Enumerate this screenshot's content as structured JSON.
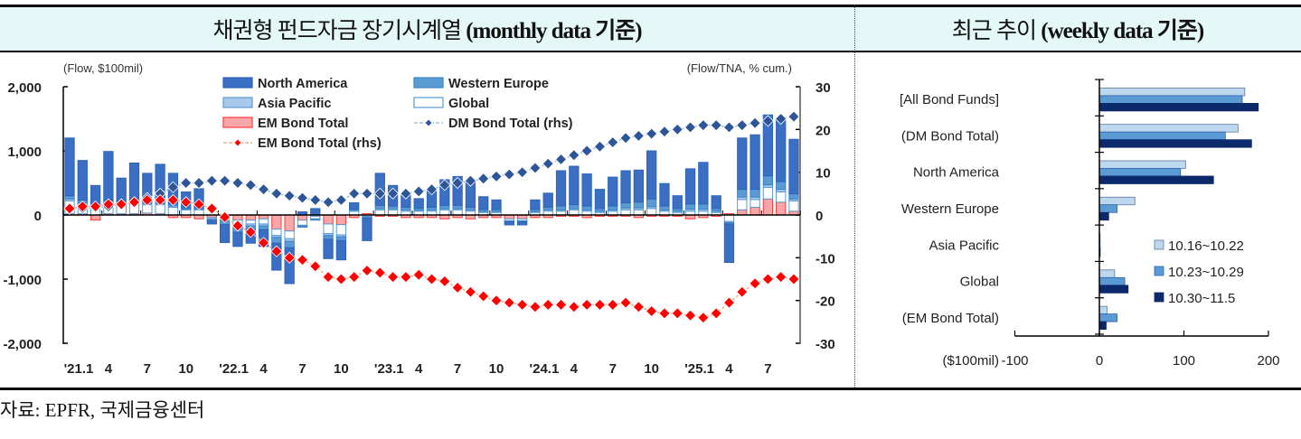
{
  "headers": {
    "left_title_ko": "채권형 펀드자금 장기시계열",
    "left_title_en": "(monthly data 기준)",
    "right_title_ko": "최근 추이",
    "right_title_en": "(weekly data 기준)"
  },
  "source": "자료: EPFR,  국제금융센터",
  "colors": {
    "north_america": "#3a6fc4",
    "western_europe": "#5b9bd5",
    "asia_pacific": "#a9c9ec",
    "global": "#ffffff",
    "em_bond": "#f7a7a7",
    "dm_line": "#2e5597",
    "em_line": "#ff0000",
    "week1": "#bdd7ee",
    "week2": "#5b9bd5",
    "week3": "#0c2a6b"
  },
  "chart_data": [
    {
      "type": "bar",
      "subtype": "stacked bar + line (dual axis)",
      "title": "채권형 펀드자금 장기시계열 (monthly data 기준)",
      "ylabel": "(Flow, $100mil)",
      "y2label": "(Flow/TNA, % cum.)",
      "ylim": [
        -2000,
        2000
      ],
      "y2lim": [
        -30,
        30
      ],
      "yticks": [
        "2,000",
        "1,000",
        "0",
        "-1,000",
        "-2,000"
      ],
      "y2ticks": [
        "30",
        "20",
        "10",
        "0",
        "-10",
        "-20",
        "-30"
      ],
      "xtick_labels": [
        "'21.1",
        "4",
        "7",
        "10",
        "'22.1",
        "4",
        "7",
        "10",
        "'23.1",
        "4",
        "7",
        "10",
        "'24.1",
        "4",
        "7",
        "10",
        "'25.1",
        "4",
        "7"
      ],
      "legend": [
        "North America",
        "Western Europe",
        "Asia Pacific",
        "Global",
        "EM Bond Total",
        "DM Bond Total (rhs)",
        "EM Bond Total (rhs)"
      ],
      "legend_position": "top",
      "months": 57,
      "series": [
        {
          "name": "North America",
          "kind": "bar",
          "values": [
            900,
            620,
            330,
            760,
            390,
            580,
            440,
            580,
            480,
            250,
            300,
            -50,
            -280,
            -220,
            -200,
            -260,
            -420,
            -560,
            50,
            100,
            -300,
            -300,
            100,
            -350,
            500,
            320,
            200,
            150,
            250,
            400,
            450,
            400,
            200,
            150,
            -50,
            -50,
            150,
            220,
            550,
            600,
            500,
            300,
            450,
            500,
            500,
            750,
            350,
            200,
            550,
            650,
            200,
            -600,
            800,
            850,
            950,
            950,
            850
          ]
        },
        {
          "name": "Western Europe",
          "kind": "bar",
          "values": [
            50,
            40,
            20,
            40,
            30,
            40,
            30,
            30,
            30,
            20,
            20,
            -20,
            -60,
            -80,
            -70,
            -60,
            -90,
            -100,
            -20,
            -10,
            -60,
            -60,
            20,
            -20,
            50,
            40,
            40,
            30,
            40,
            50,
            50,
            40,
            30,
            30,
            -10,
            -10,
            30,
            40,
            60,
            60,
            60,
            40,
            60,
            80,
            90,
            120,
            60,
            40,
            80,
            80,
            40,
            -20,
            120,
            120,
            140,
            120,
            80
          ]
        },
        {
          "name": "Asia Pacific",
          "kind": "bar",
          "values": [
            30,
            20,
            10,
            20,
            15,
            20,
            20,
            20,
            20,
            10,
            10,
            -10,
            -20,
            -30,
            -30,
            -30,
            -30,
            -40,
            -10,
            -10,
            -30,
            -30,
            10,
            -10,
            20,
            20,
            20,
            15,
            20,
            20,
            20,
            20,
            15,
            15,
            -5,
            -5,
            15,
            20,
            20,
            20,
            20,
            20,
            20,
            30,
            30,
            30,
            20,
            20,
            30,
            30,
            20,
            -20,
            40,
            40,
            40,
            40,
            30
          ]
        },
        {
          "name": "Global",
          "kind": "bar",
          "values": [
            200,
            150,
            100,
            150,
            120,
            150,
            130,
            140,
            120,
            80,
            80,
            -20,
            -50,
            -80,
            -60,
            -80,
            -100,
            -120,
            -80,
            -40,
            -150,
            -160,
            60,
            -20,
            80,
            80,
            60,
            60,
            60,
            80,
            80,
            60,
            40,
            40,
            -30,
            -30,
            40,
            60,
            60,
            80,
            60,
            40,
            60,
            80,
            80,
            100,
            60,
            40,
            60,
            60,
            40,
            -100,
            160,
            120,
            180,
            160,
            160
          ]
        },
        {
          "name": "EM Bond Total",
          "kind": "bar",
          "values": [
            20,
            20,
            -80,
            20,
            20,
            20,
            30,
            20,
            -40,
            -40,
            -60,
            -40,
            -20,
            -80,
            -80,
            -60,
            -220,
            -250,
            -80,
            -20,
            -140,
            -150,
            -40,
            20,
            -20,
            -20,
            -40,
            -40,
            -40,
            -60,
            -40,
            -60,
            -40,
            -40,
            -60,
            -60,
            -40,
            -40,
            -20,
            -20,
            -40,
            -20,
            -20,
            -20,
            -40,
            -20,
            -20,
            -20,
            -60,
            -40,
            -20,
            20,
            80,
            120,
            250,
            200,
            60
          ]
        },
        {
          "name": "DM Bond Total (rhs)",
          "kind": "line",
          "values": [
            1.5,
            1.6,
            1.7,
            2.0,
            2.5,
            3.0,
            4.0,
            5.0,
            6.5,
            7.5,
            7.5,
            8,
            8,
            7.5,
            7,
            6,
            5,
            4.5,
            4,
            3.5,
            3,
            3.5,
            5,
            5,
            5,
            5,
            5,
            5.5,
            6,
            7,
            7.5,
            8,
            8.5,
            9,
            9.5,
            10,
            11,
            12,
            13,
            14,
            15,
            16,
            17,
            18,
            18.5,
            19,
            19.5,
            20,
            20.5,
            21,
            21,
            20.5,
            21,
            21.5,
            22,
            22.5,
            23
          ]
        },
        {
          "name": "EM Bond Total (rhs)",
          "kind": "line",
          "values": [
            1.5,
            2,
            2,
            2.5,
            2.5,
            3,
            3.5,
            3.5,
            3.5,
            3,
            2.5,
            1.5,
            -0.5,
            -2.5,
            -4,
            -6.5,
            -8.5,
            -10,
            -10.5,
            -12,
            -14.5,
            -15,
            -14.5,
            -13,
            -13.5,
            -14.5,
            -14.5,
            -14,
            -15,
            -15.5,
            -17,
            -18,
            -19,
            -20,
            -20.5,
            -21,
            -21.5,
            -21,
            -21,
            -21.5,
            -21,
            -21,
            -21,
            -20.5,
            -21.5,
            -22.5,
            -23,
            -23,
            -23.5,
            -24,
            -23,
            -20.5,
            -18,
            -16,
            -15,
            -14.5,
            -15
          ]
        }
      ]
    },
    {
      "type": "bar",
      "orientation": "horizontal",
      "title": "최근 추이 (weekly data 기준)",
      "xlabel": "($100mil)",
      "xlim": [
        -100,
        200
      ],
      "xticks": [
        "-100",
        "0",
        "100",
        "200"
      ],
      "categories": [
        "[All Bond Funds]",
        "(DM Bond Total)",
        "North America",
        "Western Europe",
        "Asia Pacific",
        "Global",
        "(EM Bond Total)"
      ],
      "legend_position": "bottom-right",
      "series": [
        {
          "name": "10.16~10.22",
          "values": [
            172,
            164,
            102,
            42,
            0,
            18,
            9
          ]
        },
        {
          "name": "10.23~10.29",
          "values": [
            169,
            149,
            96,
            21,
            0,
            30,
            21
          ]
        },
        {
          "name": "10.30~11.5",
          "values": [
            188,
            180,
            135,
            11,
            1,
            34,
            8
          ]
        }
      ]
    }
  ]
}
